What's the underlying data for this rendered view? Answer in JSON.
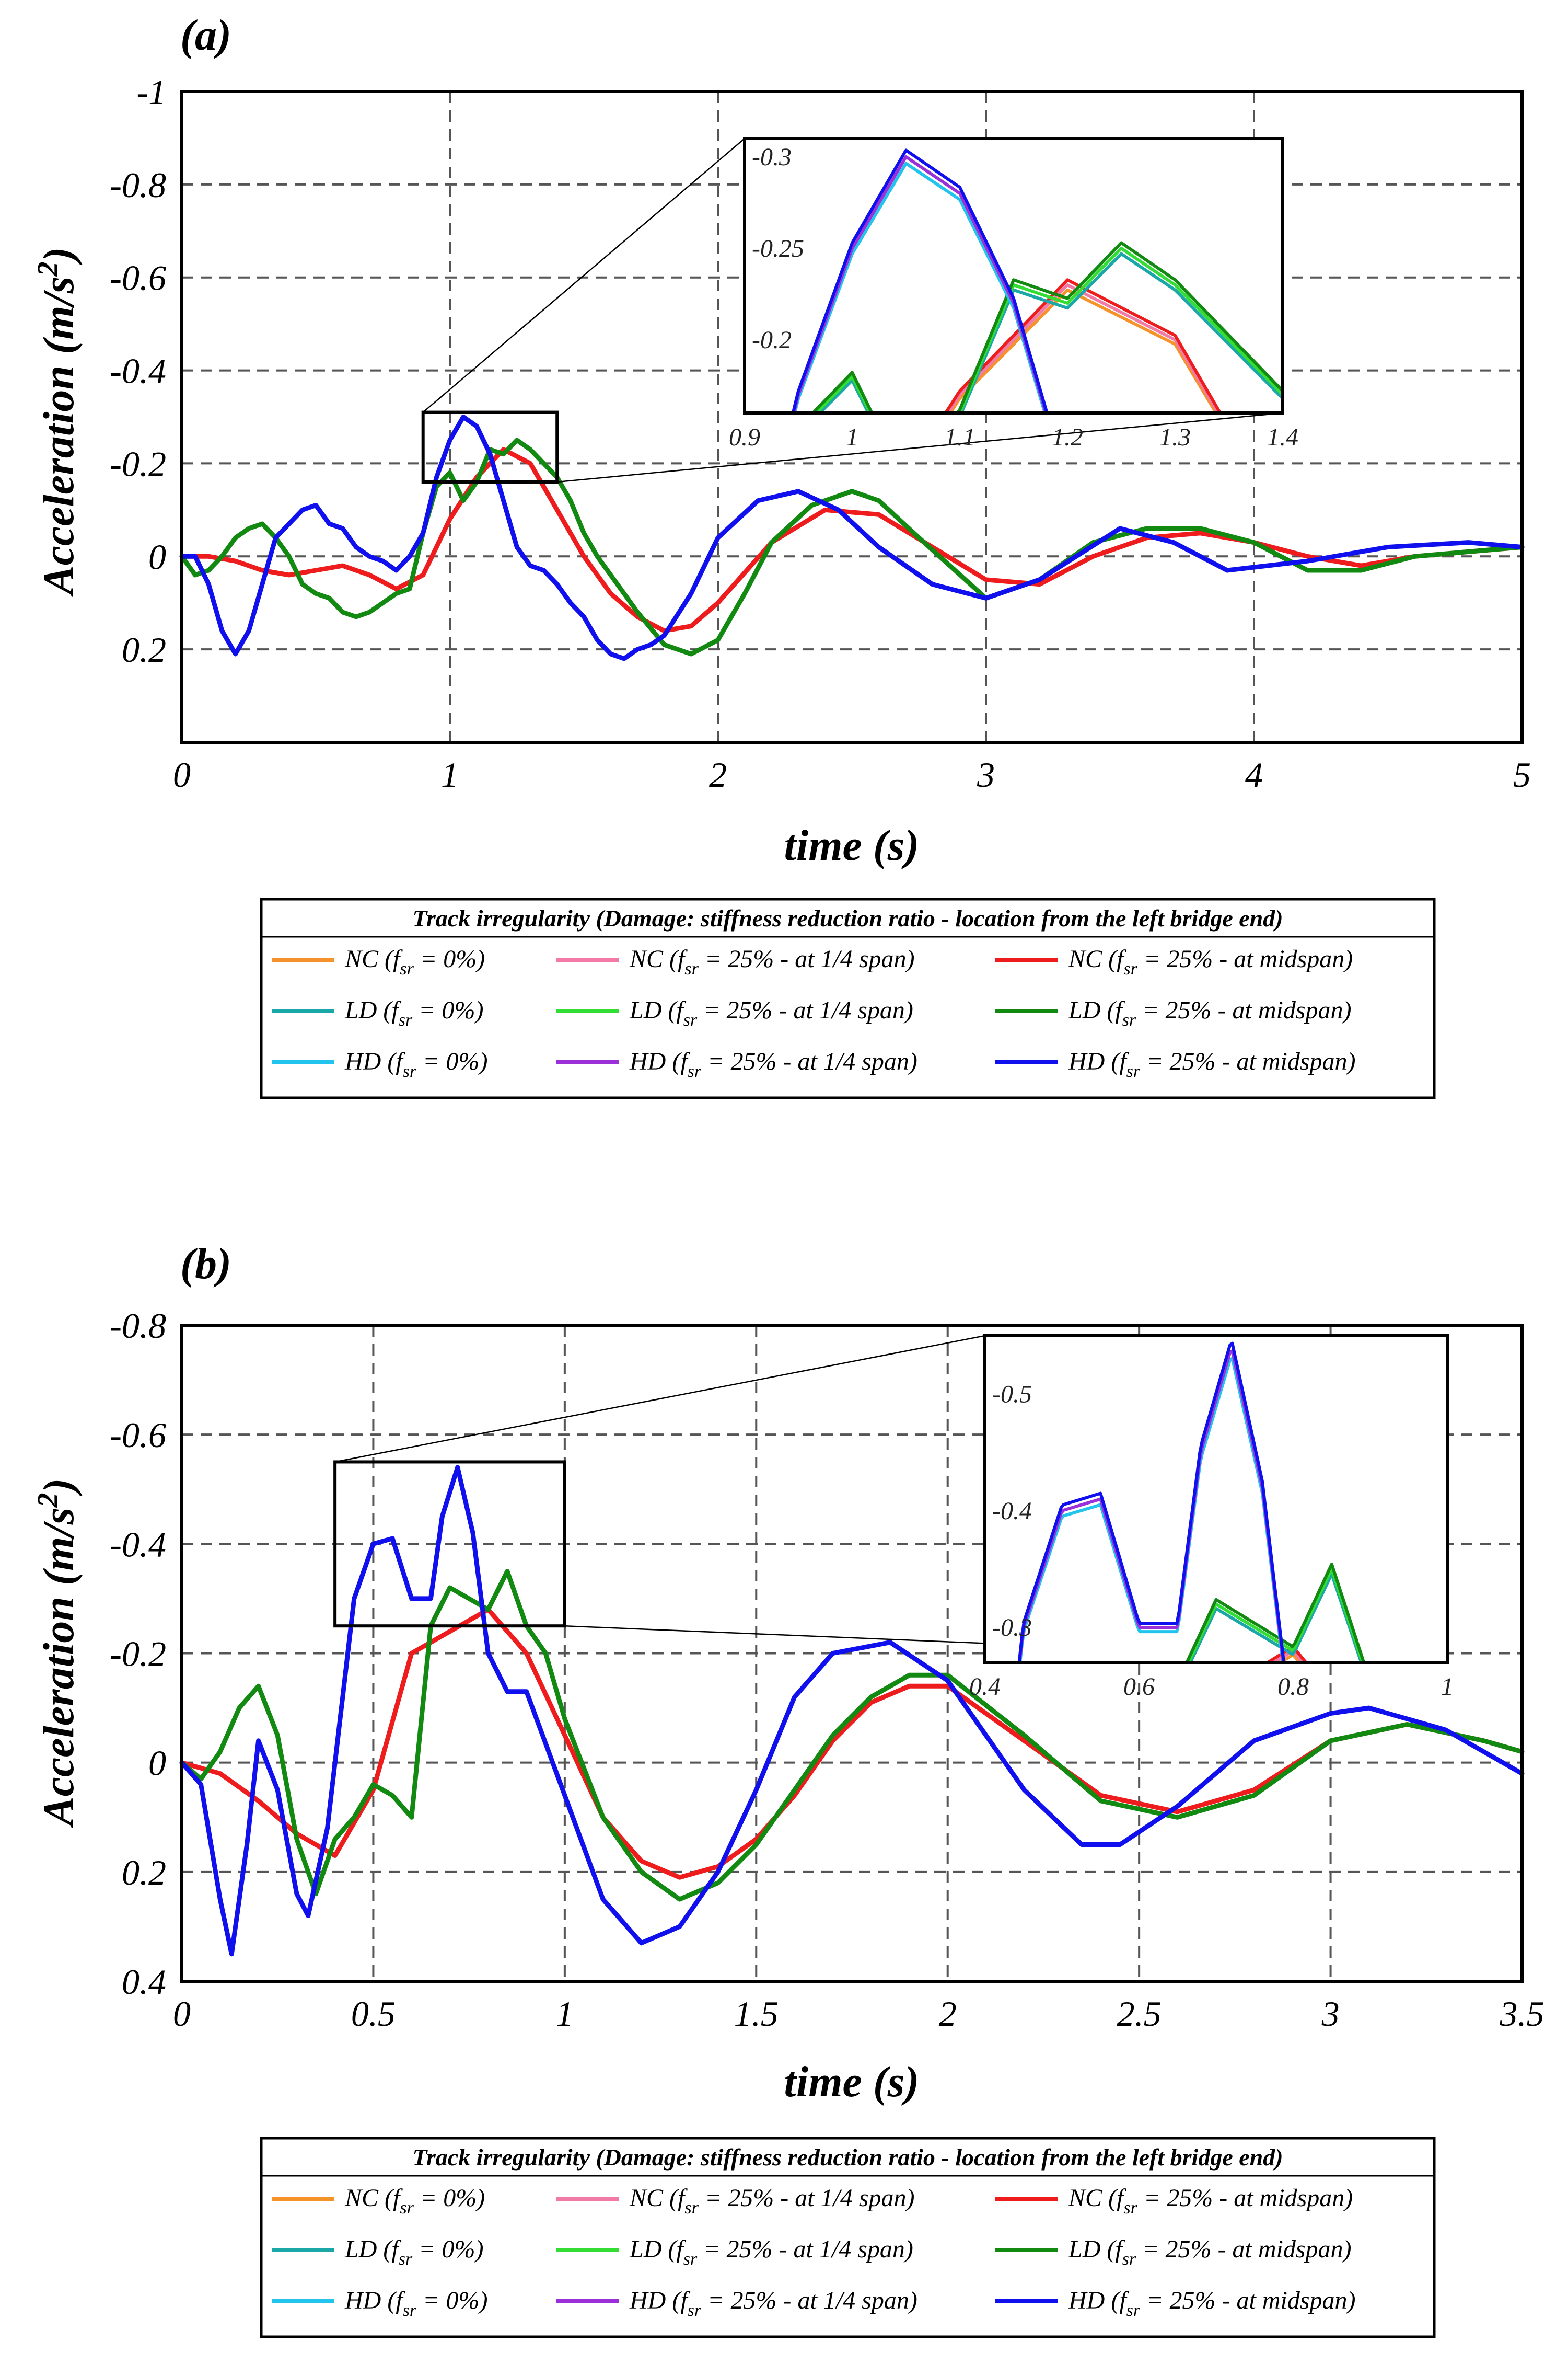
{
  "legend": {
    "title": "Track irregularity (Damage: stiffness reduction ratio - location from the left bridge end)",
    "items": [
      {
        "tag": "NC",
        "suffix": " = 0%)",
        "color": "#f5922a"
      },
      {
        "tag": "NC",
        "suffix": " = 25% - at 1/4 span)",
        "color": "#f27aa6"
      },
      {
        "tag": "NC",
        "suffix": " = 25% - at midspan)",
        "color": "#ee1c1c"
      },
      {
        "tag": "LD",
        "suffix": " = 0%)",
        "color": "#1aa7a7"
      },
      {
        "tag": "LD",
        "suffix": " = 25% - at 1/4 span)",
        "color": "#33dd33"
      },
      {
        "tag": "LD",
        "suffix": " = 25% - at midspan)",
        "color": "#128a12"
      },
      {
        "tag": "HD",
        "suffix": " = 0%)",
        "color": "#22c4ee"
      },
      {
        "tag": "HD",
        "suffix": " = 25% - at 1/4 span)",
        "color": "#9b30d9"
      },
      {
        "tag": "HD",
        "suffix": " = 25% - at midspan)",
        "color": "#1010ee"
      }
    ]
  },
  "chart_data": [
    {
      "panel": "(a)",
      "type": "line",
      "xlabel": "time (s)",
      "ylabel": "Acceleration (m/s2)",
      "xlim": [
        0,
        5
      ],
      "ylim": [
        0.4,
        -1
      ],
      "xticks": [
        0,
        1,
        2,
        3,
        4,
        5
      ],
      "yticks": [
        -1,
        -0.8,
        -0.6,
        -0.4,
        -0.2,
        0,
        0.2
      ],
      "zoom_box": {
        "x": [
          0.9,
          1.4
        ],
        "y": [
          -0.31,
          -0.16
        ]
      },
      "inset": {
        "xlim": [
          0.9,
          1.4
        ],
        "ylim": [
          -0.16,
          -0.31
        ],
        "xticks": [
          0.9,
          1,
          1.1,
          1.2,
          1.3,
          1.4
        ],
        "yticks": [
          -0.3,
          -0.25,
          -0.2
        ]
      },
      "series": [
        {
          "name": "NC",
          "color": "#ee1c1c",
          "x": [
            0,
            0.1,
            0.2,
            0.3,
            0.4,
            0.5,
            0.6,
            0.7,
            0.8,
            0.9,
            1.0,
            1.1,
            1.2,
            1.3,
            1.4,
            1.5,
            1.6,
            1.7,
            1.8,
            1.9,
            2.0,
            2.2,
            2.4,
            2.6,
            2.8,
            3.0,
            3.2,
            3.4,
            3.6,
            3.8,
            4.0,
            4.2,
            4.4,
            4.6,
            4.8,
            5.0
          ],
          "y": [
            0,
            0,
            0.01,
            0.03,
            0.04,
            0.03,
            0.02,
            0.04,
            0.07,
            0.04,
            -0.08,
            -0.17,
            -0.23,
            -0.2,
            -0.1,
            0.0,
            0.08,
            0.13,
            0.16,
            0.15,
            0.1,
            -0.03,
            -0.1,
            -0.09,
            -0.02,
            0.05,
            0.06,
            0.0,
            -0.04,
            -0.05,
            -0.03,
            0.0,
            0.02,
            0.0,
            -0.01,
            -0.02
          ]
        },
        {
          "name": "LD",
          "color": "#128a12",
          "x": [
            0,
            0.05,
            0.1,
            0.15,
            0.2,
            0.25,
            0.3,
            0.35,
            0.4,
            0.45,
            0.5,
            0.55,
            0.6,
            0.65,
            0.7,
            0.75,
            0.8,
            0.85,
            0.9,
            0.95,
            1.0,
            1.05,
            1.1,
            1.15,
            1.2,
            1.25,
            1.3,
            1.35,
            1.4,
            1.45,
            1.5,
            1.55,
            1.6,
            1.7,
            1.8,
            1.9,
            2.0,
            2.1,
            2.2,
            2.35,
            2.5,
            2.6,
            2.75,
            3.0,
            3.2,
            3.4,
            3.6,
            3.8,
            4.0,
            4.2,
            4.4,
            4.6,
            4.8,
            5.0
          ],
          "y": [
            0,
            0.04,
            0.03,
            0.0,
            -0.04,
            -0.06,
            -0.07,
            -0.04,
            0.0,
            0.06,
            0.08,
            0.09,
            0.12,
            0.13,
            0.12,
            0.1,
            0.08,
            0.07,
            -0.05,
            -0.15,
            -0.18,
            -0.12,
            -0.16,
            -0.23,
            -0.22,
            -0.25,
            -0.23,
            -0.2,
            -0.17,
            -0.12,
            -0.05,
            0.0,
            0.04,
            0.12,
            0.19,
            0.21,
            0.18,
            0.08,
            -0.03,
            -0.11,
            -0.14,
            -0.12,
            -0.04,
            0.09,
            0.05,
            -0.03,
            -0.06,
            -0.06,
            -0.03,
            0.03,
            0.03,
            0.0,
            -0.01,
            -0.02
          ]
        },
        {
          "name": "HD",
          "color": "#1010ee",
          "x": [
            0,
            0.05,
            0.1,
            0.15,
            0.2,
            0.25,
            0.3,
            0.35,
            0.4,
            0.45,
            0.5,
            0.55,
            0.6,
            0.65,
            0.7,
            0.75,
            0.8,
            0.85,
            0.9,
            0.95,
            1.0,
            1.05,
            1.1,
            1.15,
            1.2,
            1.25,
            1.3,
            1.35,
            1.4,
            1.45,
            1.5,
            1.55,
            1.6,
            1.65,
            1.7,
            1.75,
            1.8,
            1.9,
            2.0,
            2.15,
            2.3,
            2.45,
            2.6,
            2.8,
            3.0,
            3.2,
            3.5,
            3.7,
            3.9,
            4.2,
            4.5,
            4.8,
            5.0
          ],
          "y": [
            0,
            0,
            0.06,
            0.16,
            0.21,
            0.16,
            0.06,
            -0.04,
            -0.07,
            -0.1,
            -0.11,
            -0.07,
            -0.06,
            -0.02,
            0.0,
            0.01,
            0.03,
            0.0,
            -0.05,
            -0.17,
            -0.25,
            -0.3,
            -0.28,
            -0.22,
            -0.12,
            -0.02,
            0.02,
            0.03,
            0.06,
            0.1,
            0.13,
            0.18,
            0.21,
            0.22,
            0.2,
            0.19,
            0.17,
            0.08,
            -0.04,
            -0.12,
            -0.14,
            -0.1,
            -0.02,
            0.06,
            0.09,
            0.05,
            -0.06,
            -0.03,
            0.03,
            0.01,
            -0.02,
            -0.03,
            -0.02
          ]
        }
      ]
    },
    {
      "panel": "(b)",
      "type": "line",
      "xlabel": "time (s)",
      "ylabel": "Acceleration (m/s2)",
      "xlim": [
        0,
        3.5
      ],
      "ylim": [
        0.4,
        -0.8
      ],
      "xticks": [
        0,
        0.5,
        1,
        1.5,
        2,
        2.5,
        3,
        3.5
      ],
      "yticks": [
        -0.8,
        -0.6,
        -0.4,
        -0.2,
        0,
        0.2,
        0.4
      ],
      "zoom_box": {
        "x": [
          0.4,
          1.0
        ],
        "y": [
          -0.55,
          -0.25
        ]
      },
      "inset": {
        "xlim": [
          0.4,
          1.0
        ],
        "ylim": [
          -0.27,
          -0.55
        ],
        "xticks": [
          0.4,
          0.6,
          0.8,
          1
        ],
        "yticks": [
          -0.5,
          -0.4,
          -0.3
        ]
      },
      "series": [
        {
          "name": "NC",
          "color": "#ee1c1c",
          "x": [
            0,
            0.1,
            0.2,
            0.3,
            0.4,
            0.5,
            0.6,
            0.7,
            0.8,
            0.9,
            1.0,
            1.1,
            1.2,
            1.3,
            1.4,
            1.5,
            1.6,
            1.7,
            1.8,
            1.9,
            2.0,
            2.2,
            2.4,
            2.6,
            2.8,
            3.0,
            3.2,
            3.4,
            3.5
          ],
          "y": [
            0,
            0.02,
            0.07,
            0.13,
            0.17,
            0.05,
            -0.2,
            -0.24,
            -0.28,
            -0.2,
            -0.05,
            0.1,
            0.18,
            0.21,
            0.19,
            0.14,
            0.06,
            -0.04,
            -0.11,
            -0.14,
            -0.14,
            -0.04,
            0.06,
            0.09,
            0.05,
            -0.04,
            -0.07,
            -0.04,
            -0.02
          ]
        },
        {
          "name": "LD",
          "color": "#128a12",
          "x": [
            0,
            0.05,
            0.1,
            0.15,
            0.2,
            0.25,
            0.3,
            0.35,
            0.4,
            0.45,
            0.5,
            0.55,
            0.6,
            0.65,
            0.7,
            0.75,
            0.8,
            0.85,
            0.9,
            0.95,
            1.0,
            1.1,
            1.2,
            1.3,
            1.4,
            1.5,
            1.6,
            1.7,
            1.8,
            1.9,
            2.0,
            2.2,
            2.4,
            2.6,
            2.8,
            3.0,
            3.2,
            3.4,
            3.5
          ],
          "y": [
            0,
            0.03,
            -0.02,
            -0.1,
            -0.14,
            -0.05,
            0.14,
            0.24,
            0.14,
            0.1,
            0.04,
            0.06,
            0.1,
            -0.25,
            -0.32,
            -0.3,
            -0.28,
            -0.35,
            -0.25,
            -0.2,
            -0.08,
            0.1,
            0.2,
            0.25,
            0.22,
            0.15,
            0.05,
            -0.05,
            -0.12,
            -0.16,
            -0.16,
            -0.05,
            0.07,
            0.1,
            0.06,
            -0.04,
            -0.07,
            -0.04,
            -0.02
          ]
        },
        {
          "name": "HD",
          "color": "#1010ee",
          "x": [
            0,
            0.05,
            0.1,
            0.13,
            0.17,
            0.2,
            0.25,
            0.3,
            0.33,
            0.38,
            0.45,
            0.5,
            0.55,
            0.6,
            0.65,
            0.68,
            0.72,
            0.76,
            0.8,
            0.85,
            0.9,
            1.0,
            1.1,
            1.2,
            1.3,
            1.4,
            1.5,
            1.6,
            1.7,
            1.85,
            2.0,
            2.2,
            2.35,
            2.45,
            2.6,
            2.8,
            3.0,
            3.1,
            3.3,
            3.5
          ],
          "y": [
            0,
            0.04,
            0.25,
            0.35,
            0.15,
            -0.04,
            0.05,
            0.24,
            0.28,
            0.12,
            -0.3,
            -0.4,
            -0.41,
            -0.3,
            -0.3,
            -0.45,
            -0.54,
            -0.42,
            -0.2,
            -0.13,
            -0.13,
            0.06,
            0.25,
            0.33,
            0.3,
            0.2,
            0.05,
            -0.12,
            -0.2,
            -0.22,
            -0.15,
            0.05,
            0.15,
            0.15,
            0.08,
            -0.04,
            -0.09,
            -0.1,
            -0.06,
            0.02
          ]
        }
      ]
    }
  ]
}
